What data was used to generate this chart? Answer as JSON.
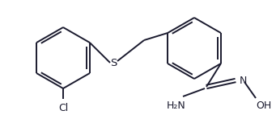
{
  "bg_color": "#ffffff",
  "line_color": "#1a1a2e",
  "text_color": "#1a1a2e",
  "label_S": "S",
  "label_Cl": "Cl",
  "label_N": "N",
  "label_H2N": "H₂N",
  "label_OH": "OH",
  "line_width": 1.4,
  "font_size": 8.5,
  "fig_width": 3.41,
  "fig_height": 1.53,
  "dpi": 100
}
